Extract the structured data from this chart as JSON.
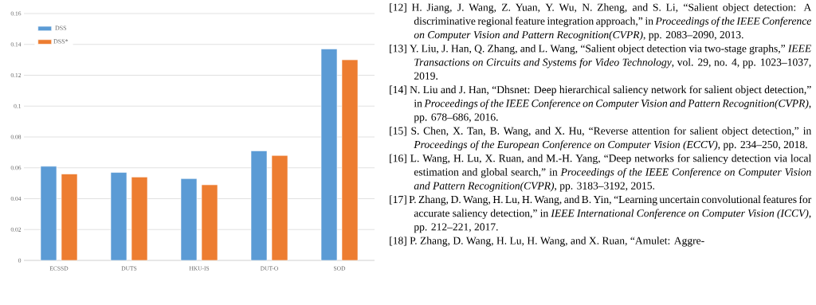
{
  "chart_data": {
    "type": "bar",
    "categories": [
      "ECSSD",
      "DUTS",
      "HKU-IS",
      "DUT-O",
      "SOD"
    ],
    "series": [
      {
        "name": "DSS",
        "color": "#5b9bd5",
        "values": [
          0.061,
          0.057,
          0.053,
          0.071,
          0.137
        ]
      },
      {
        "name": "DSS*",
        "color": "#ed7d31",
        "values": [
          0.056,
          0.054,
          0.049,
          0.068,
          0.13
        ]
      }
    ],
    "ylim": [
      0,
      0.16
    ],
    "yticks": [
      0,
      0.02,
      0.04,
      0.06,
      0.08,
      0.1,
      0.12,
      0.14,
      0.16
    ],
    "grid": "y",
    "legend": "top left",
    "annotations": [
      "[12] H. Jiang, J. Wang, Z. Yuan, Y. Wu, N. Zheng, and S. Li, “Salient object detection: A discriminative regional feature integration approach,” in *Proceedings of the IEEE Conference on Computer Vision and Pattern Recognition(CVPR)*, pp. 2083–2090, 2013.",
      "[13] Y. Liu, J. Han, Q. Zhang, and L. Wang, “Salient object detection via two-stage graphs,” *IEEE Transactions on Circuits and Systems for Video Technology*, vol. 29, no. 4, pp. 1023–1037, 2019.",
      "[14] N. Liu and J. Han, “Dhsnet: Deep hierarchical saliency network for salient object detection,” in *Proceedings of the IEEE Conference on Computer Vision and Pattern Recognition(CVPR)*, pp. 678–686, 2016.",
      "[15] S. Chen, X. Tan, B. Wang, and X. Hu, “Reverse attention for salient object detection,” in *Proceedings of the European Conference on Computer Vision (ECCV)*, pp. 234–250, 2018.",
      "[16] L. Wang, H. Lu, X. Ruan, and M.-H. Yang, “Deep networks for saliency detection via local estimation and global search,” in *Proceedings of the IEEE Conference on Computer Vision and Pattern Recognition(CVPR)*, pp. 3183–3192, 2015.",
      "[17] P. Zhang, D. Wang, H. Lu, H. Wang, and B. Yin, “Learning uncertain convolutional features for accurate saliency detection,” in *IEEE International Conference on Computer Vision (ICCV)*, pp. 212–221, 2017.",
      "[18] P. Zhang, D. Wang, H. Lu, H. Wang, and X. Ruan, “Amulet: Aggre-"
    ]
  }
}
